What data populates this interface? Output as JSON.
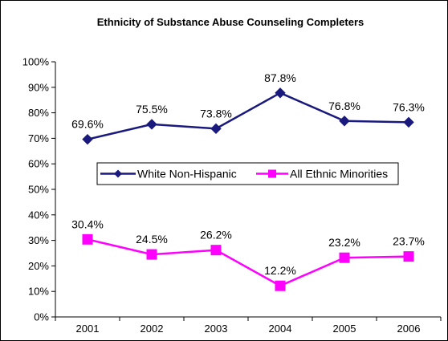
{
  "chart_data": {
    "type": "line",
    "title": "Ethnicity of Substance Abuse Counseling Completers",
    "xlabel": "",
    "ylabel": "",
    "categories": [
      "2001",
      "2002",
      "2003",
      "2004",
      "2005",
      "2006"
    ],
    "ylim": [
      0,
      100
    ],
    "yticks": [
      "0%",
      "10%",
      "20%",
      "30%",
      "40%",
      "50%",
      "60%",
      "70%",
      "80%",
      "90%",
      "100%"
    ],
    "grid": false,
    "legend_position": "middle",
    "series": [
      {
        "name": "White Non-Hispanic",
        "values": [
          69.6,
          75.5,
          73.8,
          87.8,
          76.8,
          76.3
        ],
        "labels": [
          "69.6%",
          "75.5%",
          "73.8%",
          "87.8%",
          "76.8%",
          "76.3%"
        ],
        "color": "#1a1a7e",
        "marker": "diamond"
      },
      {
        "name": "All Ethnic Minorities",
        "values": [
          30.4,
          24.5,
          26.2,
          12.2,
          23.2,
          23.7
        ],
        "labels": [
          "30.4%",
          "24.5%",
          "26.2%",
          "12.2%",
          "23.2%",
          "23.7%"
        ],
        "color": "#ff00ff",
        "marker": "square"
      }
    ]
  }
}
